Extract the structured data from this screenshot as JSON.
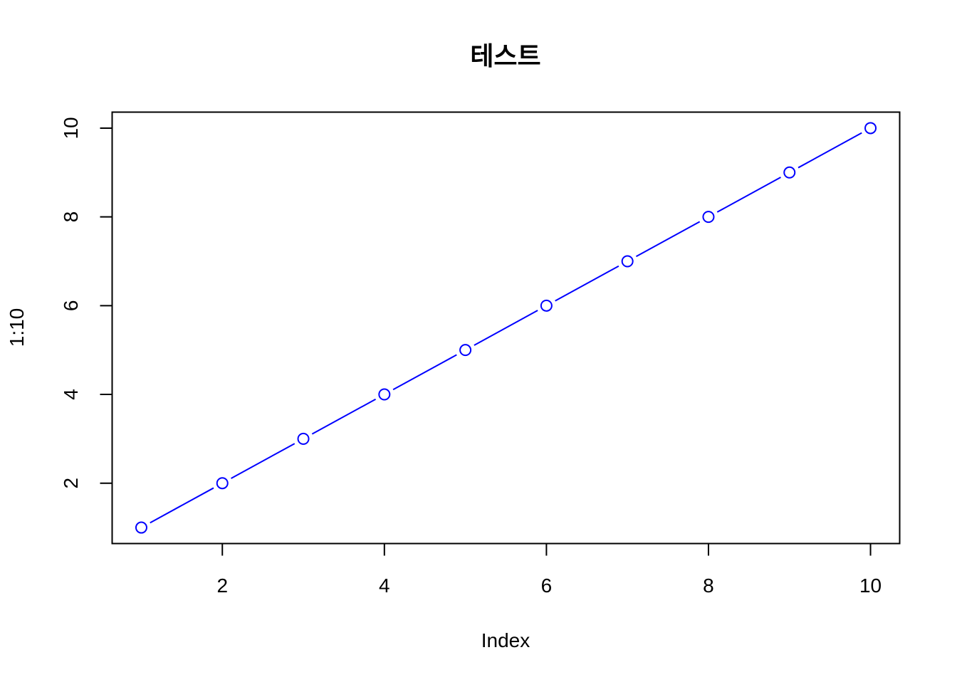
{
  "chart_data": {
    "type": "line",
    "title": "테스트",
    "xlabel": "Index",
    "ylabel": "1:10",
    "x": [
      1,
      2,
      3,
      4,
      5,
      6,
      7,
      8,
      9,
      10
    ],
    "series": [
      {
        "values": [
          1,
          2,
          3,
          4,
          5,
          6,
          7,
          8,
          9,
          10
        ],
        "color": "#0000FF",
        "marker": "open-circle",
        "line_style": "solid-gapped"
      }
    ],
    "xlim": [
      0.64,
      10.36
    ],
    "ylim": [
      0.64,
      10.36
    ],
    "x_ticks": [
      "2",
      "4",
      "6",
      "8",
      "10"
    ],
    "y_ticks": [
      "2",
      "4",
      "6",
      "8",
      "10"
    ],
    "grid": false,
    "legend": "none"
  }
}
